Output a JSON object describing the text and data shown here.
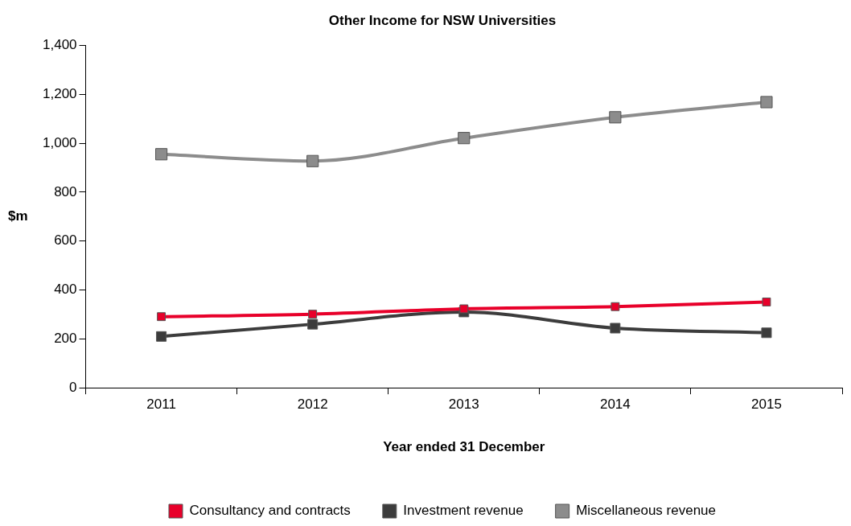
{
  "chart_data": {
    "type": "line",
    "title": "Other Income for NSW Universities",
    "xlabel": "Year ended 31 December",
    "ylabel": "$m",
    "categories": [
      "2011",
      "2012",
      "2013",
      "2014",
      "2015"
    ],
    "series": [
      {
        "name": "Consultancy and contracts",
        "color": "#e8002a",
        "values": [
          291,
          301,
          323,
          332,
          351
        ]
      },
      {
        "name": "Investment revenue",
        "color": "#3c3c3c",
        "values": [
          210,
          260,
          310,
          244,
          225
        ]
      },
      {
        "name": "Miscellaneous revenue",
        "color": "#8c8c8c",
        "values": [
          955,
          927,
          1021,
          1106,
          1168
        ]
      }
    ],
    "ylim": [
      0,
      1400
    ],
    "yticks": [
      {
        "value": 0,
        "label": "0"
      },
      {
        "value": 200,
        "label": "200"
      },
      {
        "value": 400,
        "label": "400"
      },
      {
        "value": 600,
        "label": "600"
      },
      {
        "value": 800,
        "label": "800"
      },
      {
        "value": 1000,
        "label": "1,000"
      },
      {
        "value": 1200,
        "label": "1,200"
      },
      {
        "value": 1400,
        "label": "1,400"
      }
    ],
    "grid": false,
    "legend": "bottom",
    "marker": "square",
    "line_style": "solid"
  }
}
